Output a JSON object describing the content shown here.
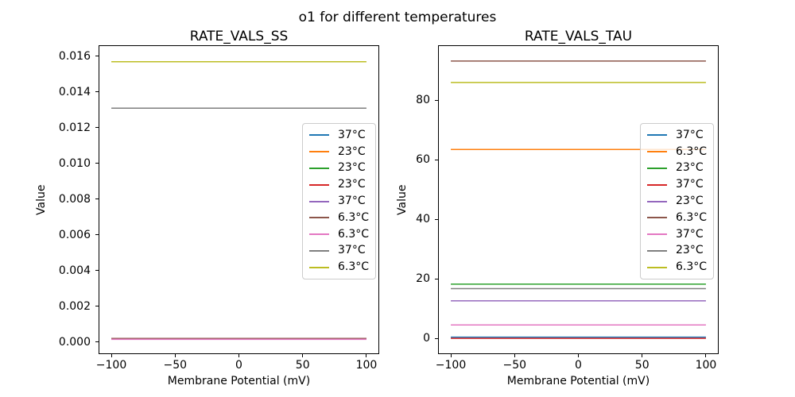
{
  "figure": {
    "suptitle": "o1 for different temperatures",
    "background_color": "#ffffff",
    "spine_color": "#000000",
    "legend_border_color": "#cccccc"
  },
  "chart_data": [
    {
      "type": "line",
      "title": "RATE_VALS_SS",
      "xlabel": "Membrane Potential (mV)",
      "ylabel": "Value",
      "x_range": [
        -100,
        100
      ],
      "xlim": [
        -110,
        110
      ],
      "ylim": [
        -0.00067,
        0.01662
      ],
      "x_tick_values": [
        -100,
        -50,
        0,
        50,
        100
      ],
      "x_tick_labels": [
        "−100",
        "−50",
        "0",
        "50",
        "100"
      ],
      "y_tick_values": [
        0.0,
        0.002,
        0.004,
        0.006,
        0.008,
        0.01,
        0.012,
        0.014,
        0.016
      ],
      "y_tick_labels": [
        "0.000",
        "0.002",
        "0.004",
        "0.006",
        "0.008",
        "0.010",
        "0.012",
        "0.014",
        "0.016"
      ],
      "grid": false,
      "legend_position": "center right",
      "series": [
        {
          "name": "37°C",
          "color": "#1f77b4",
          "value": 0.0002
        },
        {
          "name": "23°C",
          "color": "#ff7f0e",
          "value": 0.0002
        },
        {
          "name": "23°C",
          "color": "#2ca02c",
          "value": 0.0002
        },
        {
          "name": "23°C",
          "color": "#d62728",
          "value": 0.0002
        },
        {
          "name": "37°C",
          "color": "#9467bd",
          "value": 0.0002
        },
        {
          "name": "6.3°C",
          "color": "#8c564b",
          "value": 0.00021
        },
        {
          "name": "6.3°C",
          "color": "#e377c2",
          "value": 0.00016
        },
        {
          "name": "37°C",
          "color": "#7f7f7f",
          "value": 0.0131
        },
        {
          "name": "6.3°C",
          "color": "#bcbd22",
          "value": 0.0157
        }
      ]
    },
    {
      "type": "line",
      "title": "RATE_VALS_TAU",
      "xlabel": "Membrane Potential (mV)",
      "ylabel": "Value",
      "x_range": [
        -100,
        100
      ],
      "xlim": [
        -110,
        110
      ],
      "ylim": [
        -5.2,
        98.5
      ],
      "x_tick_values": [
        -100,
        -50,
        0,
        50,
        100
      ],
      "x_tick_labels": [
        "−100",
        "−50",
        "0",
        "50",
        "100"
      ],
      "y_tick_values": [
        0,
        20,
        40,
        60,
        80
      ],
      "y_tick_labels": [
        "0",
        "20",
        "40",
        "60",
        "80"
      ],
      "grid": false,
      "legend_position": "center right",
      "series": [
        {
          "name": "37°C",
          "color": "#1f77b4",
          "value": 0.5
        },
        {
          "name": "6.3°C",
          "color": "#ff7f0e",
          "value": 63.5
        },
        {
          "name": "23°C",
          "color": "#2ca02c",
          "value": 18.3
        },
        {
          "name": "37°C",
          "color": "#d62728",
          "value": 0.1
        },
        {
          "name": "23°C",
          "color": "#9467bd",
          "value": 12.7
        },
        {
          "name": "6.3°C",
          "color": "#8c564b",
          "value": 93.2
        },
        {
          "name": "37°C",
          "color": "#e377c2",
          "value": 4.6
        },
        {
          "name": "23°C",
          "color": "#7f7f7f",
          "value": 16.8
        },
        {
          "name": "6.3°C",
          "color": "#bcbd22",
          "value": 86.0
        }
      ]
    }
  ]
}
